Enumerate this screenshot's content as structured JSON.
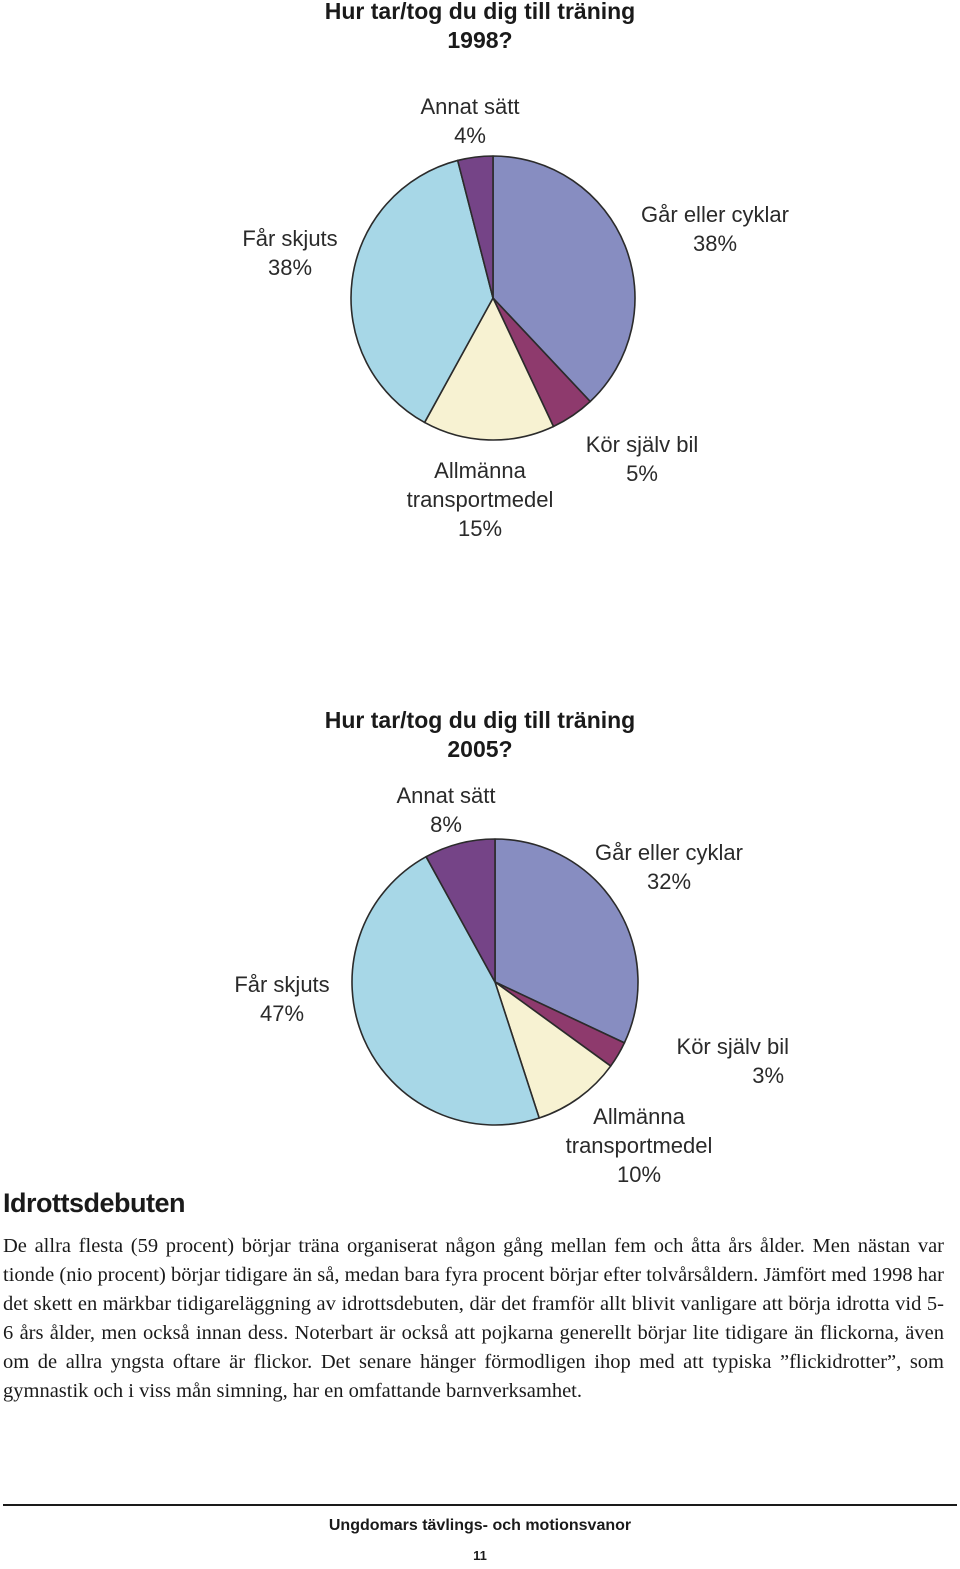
{
  "chart_data": [
    {
      "type": "pie",
      "title": "Hur tar/tog du dig till träning 1998?",
      "title_lines": [
        "Hur tar/tog du dig till träning",
        "1998?"
      ],
      "slices": [
        {
          "name": "Går eller cyklar",
          "name_lines": [
            "Går eller cyklar"
          ],
          "value": 38,
          "value_label": "38%",
          "color": "#878dc1"
        },
        {
          "name": "Kör själv bil",
          "name_lines": [
            "Kör själv bil"
          ],
          "value": 5,
          "value_label": "5%",
          "color": "#8e3a6d"
        },
        {
          "name": "Allmänna transportmedel",
          "name_lines": [
            "Allmänna",
            "transportmedel"
          ],
          "value": 15,
          "value_label": "15%",
          "color": "#f7f2d2"
        },
        {
          "name": "Får skjuts",
          "name_lines": [
            "Får skjuts"
          ],
          "value": 38,
          "value_label": "38%",
          "color": "#a7d7e7"
        },
        {
          "name": "Annat sätt",
          "name_lines": [
            "Annat sätt"
          ],
          "value": 4,
          "value_label": "4%",
          "color": "#754487"
        }
      ]
    },
    {
      "type": "pie",
      "title": "Hur tar/tog du dig till träning 2005?",
      "title_lines": [
        "Hur tar/tog du dig till träning",
        "2005?"
      ],
      "slices": [
        {
          "name": "Går eller cyklar",
          "name_lines": [
            "Går eller cyklar"
          ],
          "value": 32,
          "value_label": "32%",
          "color": "#878dc1"
        },
        {
          "name": "Kör själv bil",
          "name_lines": [
            "Kör själv bil"
          ],
          "value": 3,
          "value_label": "3%",
          "color": "#8e3a6d"
        },
        {
          "name": "Allmänna transportmedel",
          "name_lines": [
            "Allmänna",
            "transportmedel"
          ],
          "value": 10,
          "value_label": "10%",
          "color": "#f7f2d2"
        },
        {
          "name": "Får skjuts",
          "name_lines": [
            "Får skjuts"
          ],
          "value": 47,
          "value_label": "47%",
          "color": "#a7d7e7"
        },
        {
          "name": "Annat sätt",
          "name_lines": [
            "Annat sätt"
          ],
          "value": 8,
          "value_label": "8%",
          "color": "#754487"
        }
      ]
    }
  ],
  "section": {
    "heading": "Idrottsdebuten",
    "paragraph": "De allra flesta (59 procent) börjar träna organiserat någon gång mellan fem och åtta års ålder. Men nästan var tionde (nio procent) börjar tidigare än så, medan bara fyra procent börjar efter tolvårsåldern. Jämfört med 1998 har det skett en märkbar tidigareläggning av idrottsdebuten, där det framför allt blivit vanligare att börja idrotta vid 5-6 års ålder, men också innan dess. Noterbart är också att pojkarna generellt börjar lite tidigare än flickorna, även om de allra yngsta oftare är flickor. Det senare hänger förmodligen ihop med att typiska ”flickidrotter”, som gymnastik och i viss mån simning, har en omfattande barnverksamhet."
  },
  "footer": {
    "title": "Ungdomars tävlings- och motionsvanor",
    "page_number": "11"
  }
}
